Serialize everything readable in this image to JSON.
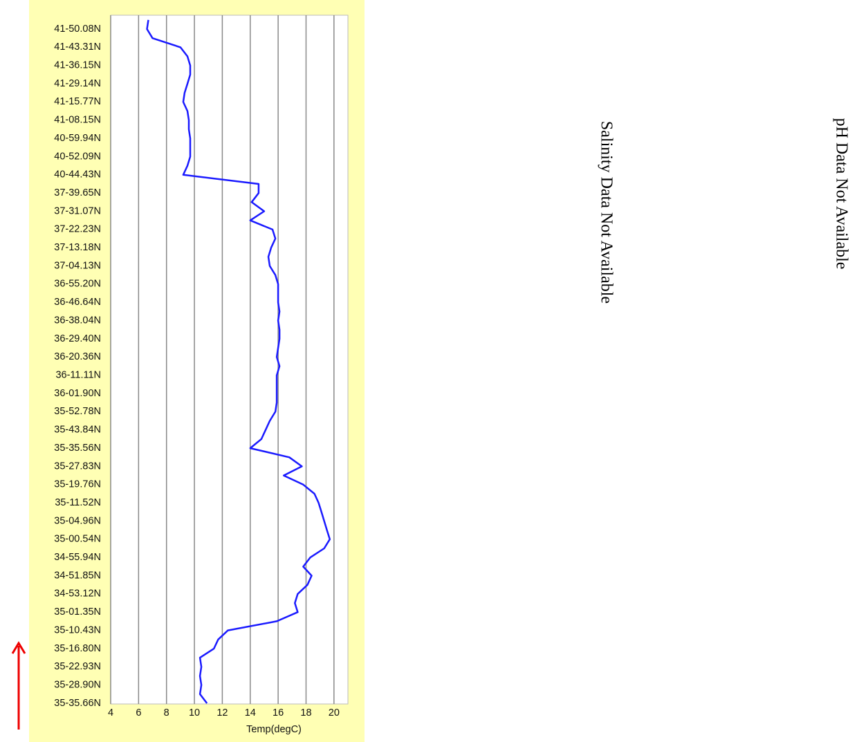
{
  "chart_data": {
    "type": "line",
    "orientation": "horizontal-values",
    "xlabel": "Temp(degC)",
    "categories": [
      null,
      "41-50.08N",
      null,
      "41-43.31N",
      null,
      "41-36.15N",
      null,
      "41-29.14N",
      null,
      "41-15.77N",
      null,
      "41-08.15N",
      null,
      "40-59.94N",
      null,
      "40-52.09N",
      null,
      "40-44.43N",
      null,
      "37-39.65N",
      null,
      "37-31.07N",
      null,
      "37-22.23N",
      null,
      "37-13.18N",
      null,
      "37-04.13N",
      null,
      "36-55.20N",
      null,
      "36-46.64N",
      null,
      "36-38.04N",
      null,
      "36-29.40N",
      null,
      "36-20.36N",
      null,
      "36-11.11N",
      null,
      "36-01.90N",
      null,
      "35-52.78N",
      null,
      "35-43.84N",
      null,
      "35-35.56N",
      null,
      "35-27.83N",
      null,
      "35-19.76N",
      null,
      "35-11.52N",
      null,
      "35-04.96N",
      null,
      "35-00.54N",
      null,
      "34-55.94N",
      null,
      "34-51.85N",
      null,
      "34-53.12N",
      null,
      "35-01.35N",
      null,
      "35-10.43N",
      null,
      "35-16.80N",
      null,
      "35-22.93N",
      null,
      "35-28.90N",
      null,
      "35-35.66N"
    ],
    "values": [
      6.7,
      6.6,
      7.0,
      9.0,
      9.5,
      9.7,
      9.7,
      9.5,
      9.3,
      9.2,
      9.5,
      9.6,
      9.6,
      9.7,
      9.7,
      9.7,
      9.5,
      9.2,
      14.6,
      14.6,
      14.1,
      15.0,
      14.0,
      15.6,
      15.8,
      15.5,
      15.3,
      15.4,
      15.8,
      16.0,
      16.0,
      16.0,
      16.1,
      16.0,
      16.1,
      16.1,
      16.0,
      15.9,
      16.1,
      15.9,
      15.9,
      15.9,
      15.9,
      15.8,
      15.4,
      15.1,
      14.8,
      14.0,
      16.8,
      17.7,
      16.4,
      17.8,
      18.6,
      18.9,
      19.1,
      19.3,
      19.5,
      19.7,
      19.3,
      18.3,
      17.8,
      18.4,
      18.1,
      17.4,
      17.2,
      17.4,
      15.9,
      12.4,
      11.7,
      11.4,
      10.4,
      10.5,
      10.4,
      10.5,
      10.4,
      10.9
    ],
    "color": "#1a1aff",
    "xlim": [
      4,
      21
    ],
    "xticks": [
      4,
      6,
      8,
      10,
      12,
      14,
      16,
      18,
      20
    ],
    "grid": true,
    "annotations": [
      "Salinity Data Not Available",
      "pH Data Not Available"
    ]
  }
}
